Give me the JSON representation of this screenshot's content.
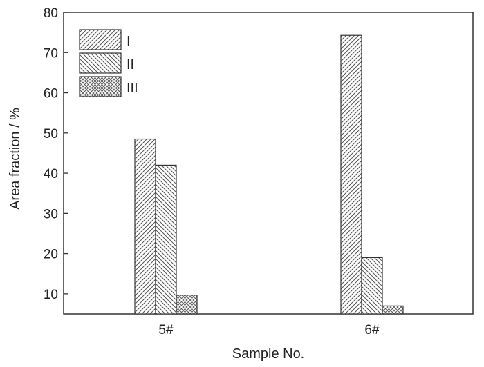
{
  "chart_data": {
    "type": "bar",
    "categories": [
      "5#",
      "6#"
    ],
    "series": [
      {
        "name": "I",
        "values": [
          48.5,
          74.3
        ],
        "pattern": "hatch-forward"
      },
      {
        "name": "II",
        "values": [
          42.0,
          19.0
        ],
        "pattern": "hatch-back"
      },
      {
        "name": "III",
        "values": [
          9.7,
          7.0
        ],
        "pattern": "crosshatch"
      }
    ],
    "xlabel": "Sample No.",
    "ylabel": "Area fraction / %",
    "ylim": [
      5,
      80
    ],
    "yticks": [
      10,
      20,
      30,
      40,
      50,
      60,
      70,
      80
    ],
    "grid": false,
    "legend_position": "top-left",
    "colors": {
      "bar_fill": "#ffffff",
      "stroke": "#333333",
      "hatch": "#555555"
    }
  }
}
